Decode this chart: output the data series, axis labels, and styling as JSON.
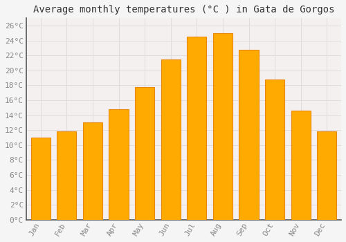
{
  "months": [
    "Jan",
    "Feb",
    "Mar",
    "Apr",
    "May",
    "Jun",
    "Jul",
    "Aug",
    "Sep",
    "Oct",
    "Nov",
    "Dec"
  ],
  "temperatures": [
    11.0,
    11.8,
    13.0,
    14.8,
    17.8,
    21.5,
    24.5,
    25.0,
    22.8,
    18.8,
    14.6,
    11.8
  ],
  "title": "Average monthly temperatures (°C ) in Gata de Gorgos",
  "bar_color": "#FFAA00",
  "bar_edge_color": "#E8870A",
  "background_color": "#F5F5F5",
  "plot_bg_color": "#F5F0F0",
  "grid_color": "#DDDDDD",
  "text_color": "#888888",
  "axis_color": "#555555",
  "ylim": [
    0,
    27
  ],
  "yticks": [
    0,
    2,
    4,
    6,
    8,
    10,
    12,
    14,
    16,
    18,
    20,
    22,
    24,
    26
  ],
  "ytick_labels": [
    "0°C",
    "2°C",
    "4°C",
    "6°C",
    "8°C",
    "10°C",
    "12°C",
    "14°C",
    "16°C",
    "18°C",
    "20°C",
    "22°C",
    "24°C",
    "26°C"
  ],
  "title_fontsize": 10,
  "tick_fontsize": 8,
  "font_family": "monospace"
}
